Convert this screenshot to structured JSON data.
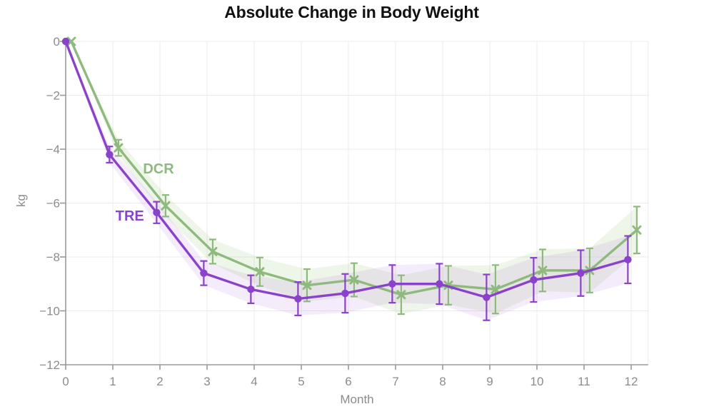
{
  "chart_data": {
    "type": "line",
    "title": "Absolute Change in Body Weight",
    "xlabel": "Month",
    "ylabel": "kg",
    "x": [
      0,
      1,
      2,
      3,
      4,
      5,
      6,
      7,
      8,
      9,
      10,
      11,
      12
    ],
    "x_tick_labels": [
      "0",
      "1",
      "2",
      "3",
      "4",
      "5",
      "6",
      "7",
      "8",
      "9",
      "10",
      "11",
      "12"
    ],
    "y_tick_values": [
      0,
      -2,
      -4,
      -6,
      -8,
      -10,
      -12
    ],
    "y_tick_labels": [
      "0",
      "−2",
      "−4",
      "−6",
      "−8",
      "−10",
      "−12"
    ],
    "ylim": [
      -12,
      0
    ],
    "xlim": [
      0,
      12.36
    ],
    "grid": true,
    "legend": "inline-labels",
    "axis_color": "#999999",
    "grid_color": "#ebebeb",
    "tick_text_color": "#8c8c8c",
    "series": [
      {
        "name": "DCR",
        "color": "#8fba7e",
        "band_color": "rgba(150,190,120,0.16)",
        "marker": "x",
        "x_offset": 0.12,
        "values": [
          0,
          -3.95,
          -6.1,
          -7.8,
          -8.55,
          -9.05,
          -8.85,
          -9.4,
          -9.05,
          -9.2,
          -8.5,
          -8.5,
          -7.0
        ],
        "errors": [
          0,
          0.3,
          0.4,
          0.45,
          0.53,
          0.6,
          0.62,
          0.72,
          0.72,
          0.9,
          0.78,
          0.82,
          0.87
        ],
        "label": "DCR",
        "label_x_month": 1.97,
        "label_y_kg": -4.72
      },
      {
        "name": "TRE",
        "color": "#8942c9",
        "band_color": "rgba(170,100,220,0.12)",
        "marker": "circle",
        "x_offset": -0.07,
        "values": [
          0,
          -4.2,
          -6.35,
          -8.6,
          -9.2,
          -9.55,
          -9.35,
          -9.0,
          -9.0,
          -9.5,
          -8.85,
          -8.6,
          -8.1
        ],
        "errors": [
          0,
          0.3,
          0.4,
          0.45,
          0.52,
          0.62,
          0.72,
          0.7,
          0.75,
          0.85,
          0.82,
          0.85,
          0.88
        ],
        "label": "TRE",
        "label_x_month": 1.36,
        "label_y_kg": -6.47
      }
    ]
  }
}
